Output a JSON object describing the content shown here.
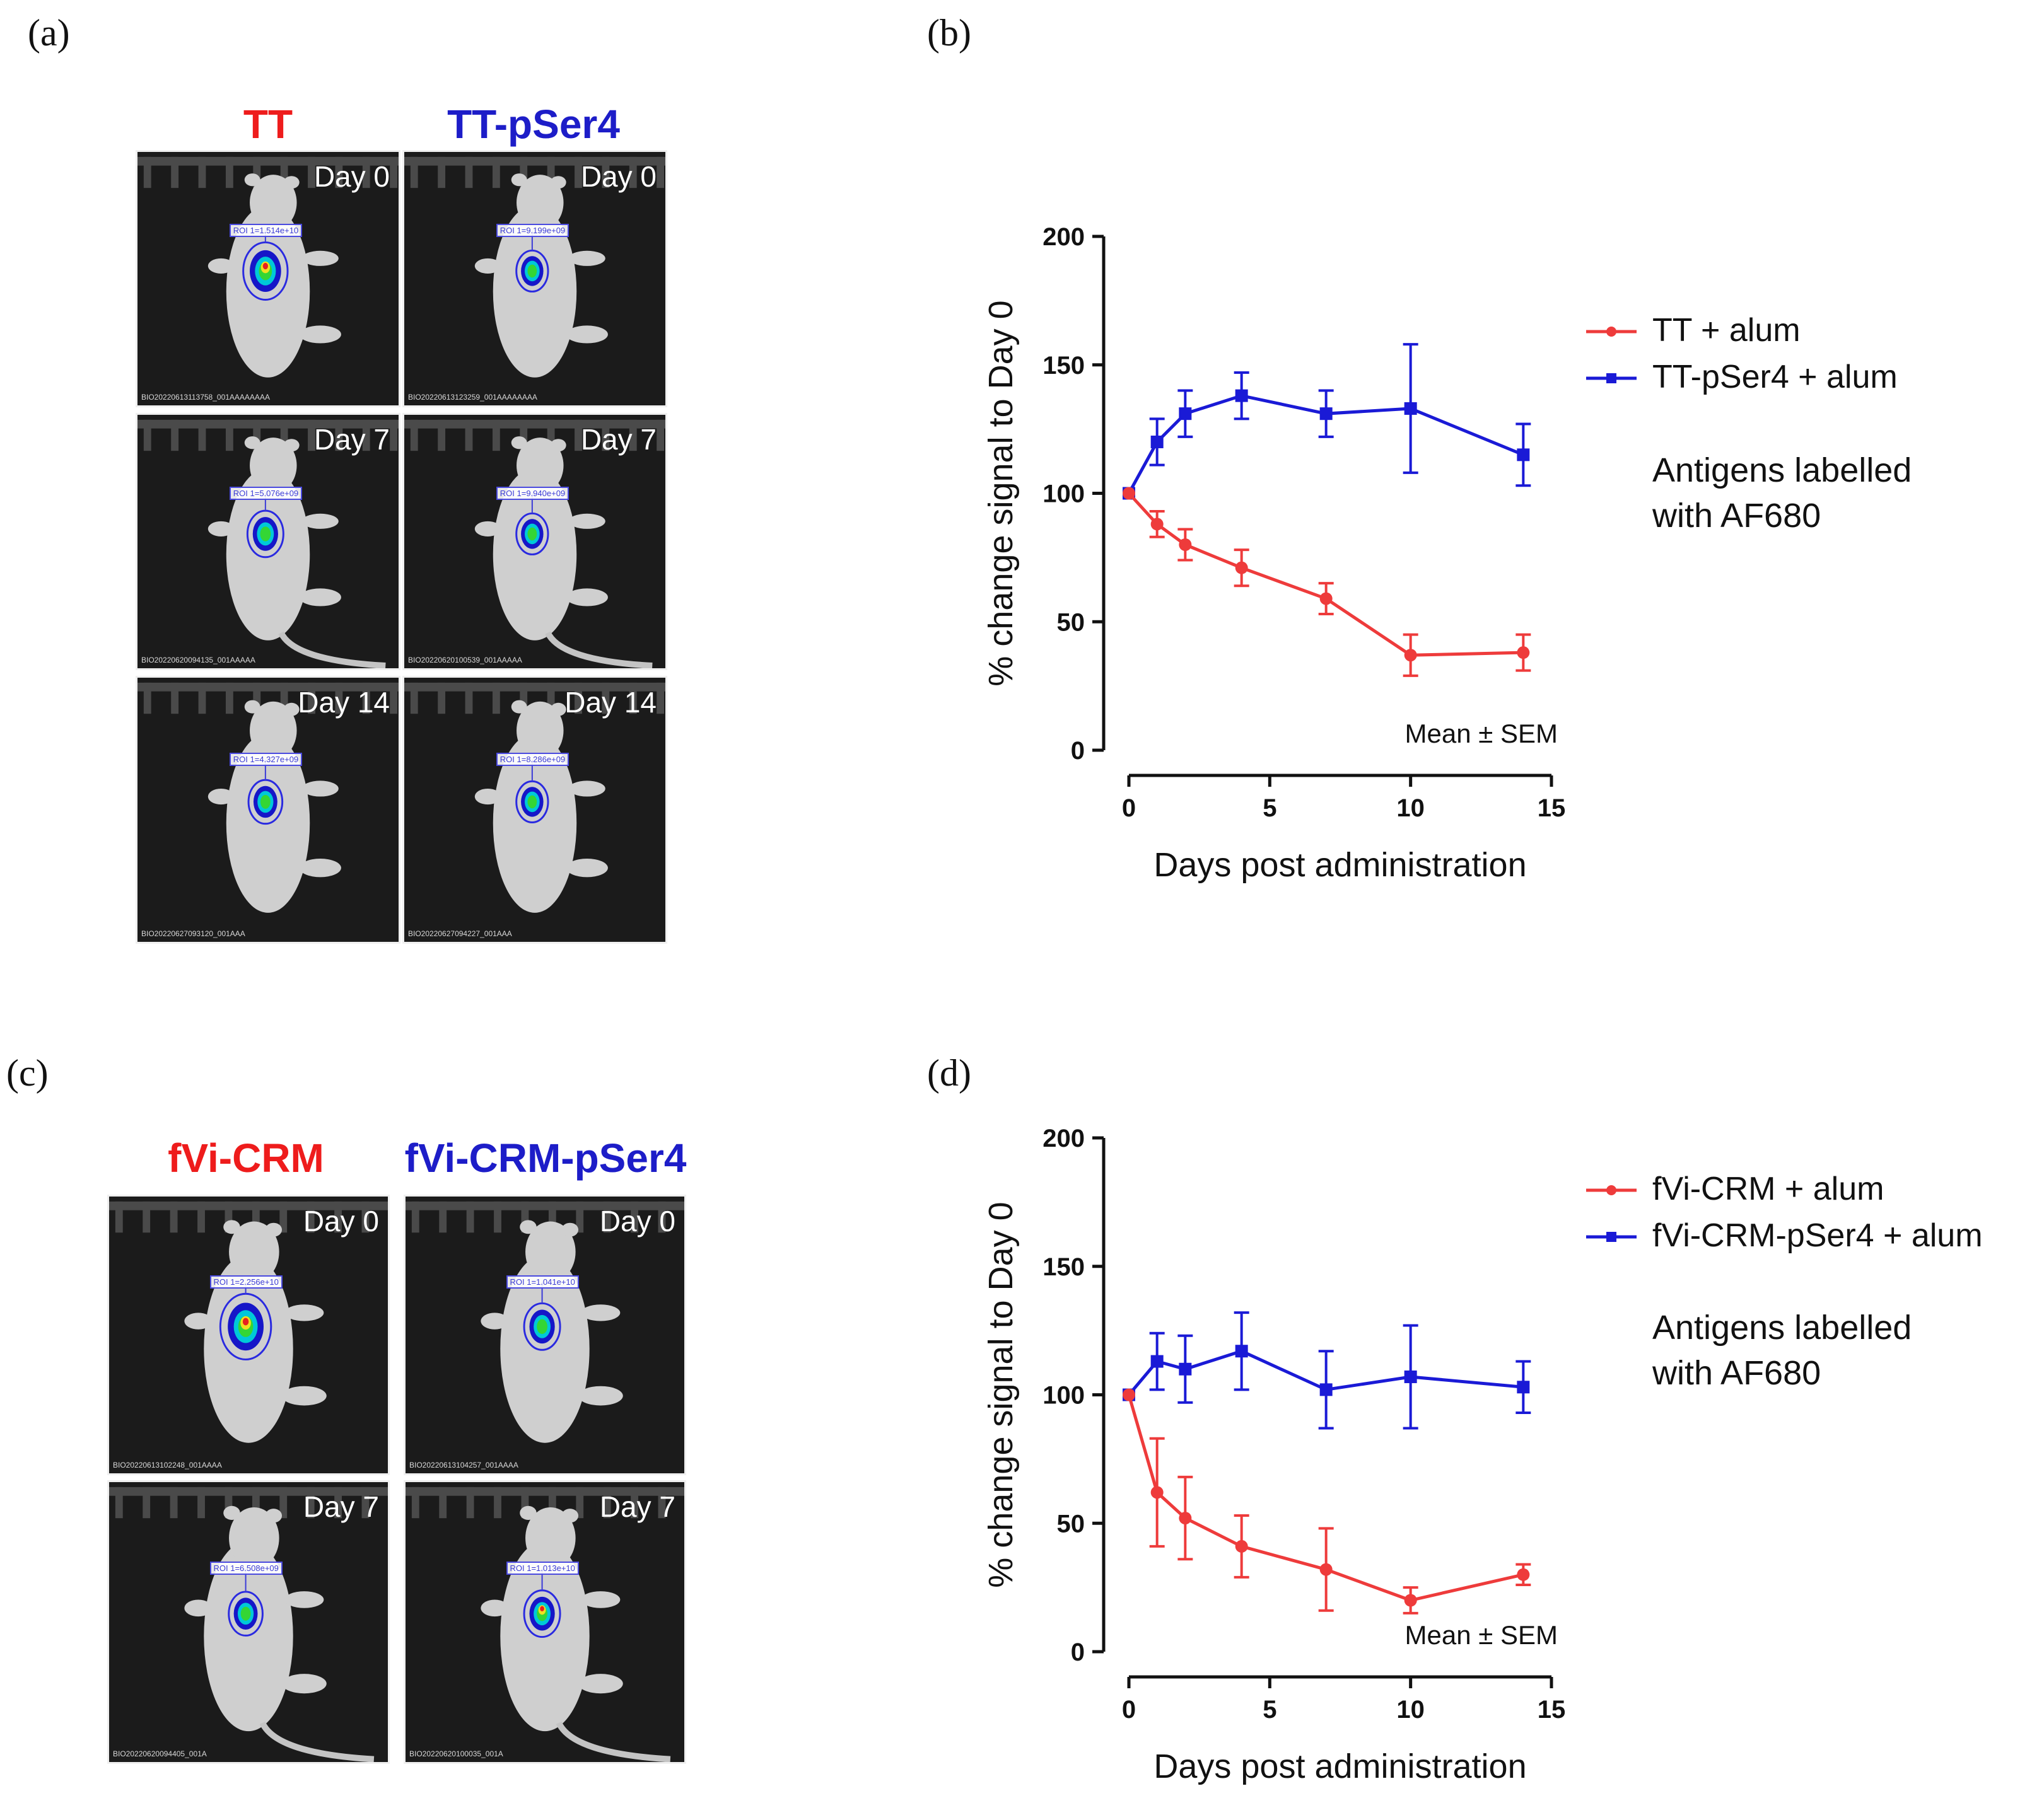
{
  "panels": {
    "a": {
      "letter": "(a)",
      "col_left": "TT",
      "col_right": "TT-pSer4",
      "cells": [
        {
          "day": "Day 0",
          "roi": "ROI 1=1.514e+10",
          "file": "BIO20220613113758_001AAAAAAAA"
        },
        {
          "day": "Day 0",
          "roi": "ROI 1=9.199e+09",
          "file": "BIO20220613123259_001AAAAAAAA"
        },
        {
          "day": "Day 7",
          "roi": "ROI 1=5.076e+09",
          "file": "BIO20220620094135_001AAAAA"
        },
        {
          "day": "Day 7",
          "roi": "ROI 1=9.940e+09",
          "file": "BIO20220620100539_001AAAAA"
        },
        {
          "day": "Day 14",
          "roi": "ROI 1=4.327e+09",
          "file": "BIO20220627093120_001AAA"
        },
        {
          "day": "Day 14",
          "roi": "ROI 1=8.286e+09",
          "file": "BIO20220627094227_001AAA"
        }
      ]
    },
    "b": {
      "letter": "(b)",
      "legend": [
        "TT + alum",
        "TT-pSer4 + alum"
      ],
      "note": [
        "Antigens labelled",
        "with AF680"
      ]
    },
    "c": {
      "letter": "(c)",
      "col_left": "fVi-CRM",
      "col_right": "fVi-CRM-pSer4",
      "cells": [
        {
          "day": "Day 0",
          "roi": "ROI 1=2.256e+10",
          "file": "BIO20220613102248_001AAAA"
        },
        {
          "day": "Day 0",
          "roi": "ROI 1=1.041e+10",
          "file": "BIO20220613104257_001AAAA"
        },
        {
          "day": "Day 7",
          "roi": "ROI 1=6.508e+09",
          "file": "BIO20220620094405_001A"
        },
        {
          "day": "Day 7",
          "roi": "ROI 1=1.013e+10",
          "file": "BIO20220620100035_001A"
        }
      ]
    },
    "d": {
      "letter": "(d)",
      "legend": [
        "fVi-CRM + alum",
        "fVi-CRM-pSer4 + alum"
      ],
      "note": [
        "Antigens labelled",
        "with AF680"
      ]
    }
  },
  "colors": {
    "red": "#ee3b3b",
    "blue": "#1a1ad6",
    "red_title": "#ee1c1c",
    "blue_title": "#1d1dc8"
  },
  "chart_data": [
    {
      "type": "line",
      "panel": "b",
      "xlabel": "Days post administration",
      "ylabel": "% change signal to Day 0",
      "xlim": [
        0,
        15
      ],
      "ylim": [
        0,
        200
      ],
      "xticks": [
        0,
        5,
        10,
        15
      ],
      "yticks": [
        0,
        50,
        100,
        150,
        200
      ],
      "annotation": "Mean ± SEM",
      "series": [
        {
          "name": "TT + alum",
          "color": "#ee3b3b",
          "marker": "circle",
          "x": [
            0,
            1,
            2,
            4,
            7,
            10,
            14
          ],
          "y": [
            100,
            88,
            80,
            71,
            59,
            37,
            38
          ],
          "err": [
            0,
            5,
            6,
            7,
            6,
            8,
            7
          ]
        },
        {
          "name": "TT-pSer4 + alum",
          "color": "#1a1ad6",
          "marker": "square",
          "x": [
            0,
            1,
            2,
            4,
            7,
            10,
            14
          ],
          "y": [
            100,
            120,
            131,
            138,
            131,
            133,
            115
          ],
          "err": [
            0,
            9,
            9,
            9,
            9,
            25,
            12
          ]
        }
      ]
    },
    {
      "type": "line",
      "panel": "d",
      "xlabel": "Days post administration",
      "ylabel": "% change signal to Day 0",
      "xlim": [
        0,
        15
      ],
      "ylim": [
        0,
        200
      ],
      "xticks": [
        0,
        5,
        10,
        15
      ],
      "yticks": [
        0,
        50,
        100,
        150,
        200
      ],
      "annotation": "Mean ± SEM",
      "series": [
        {
          "name": "fVi-CRM + alum",
          "color": "#ee3b3b",
          "marker": "circle",
          "x": [
            0,
            1,
            2,
            4,
            7,
            10,
            14
          ],
          "y": [
            100,
            62,
            52,
            41,
            32,
            20,
            30
          ],
          "err": [
            0,
            21,
            16,
            12,
            16,
            5,
            4
          ]
        },
        {
          "name": "fVi-CRM-pSer4 + alum",
          "color": "#1a1ad6",
          "marker": "square",
          "x": [
            0,
            1,
            2,
            4,
            7,
            10,
            14
          ],
          "y": [
            100,
            113,
            110,
            117,
            102,
            107,
            103
          ],
          "err": [
            0,
            11,
            13,
            15,
            15,
            20,
            10
          ]
        }
      ]
    }
  ]
}
